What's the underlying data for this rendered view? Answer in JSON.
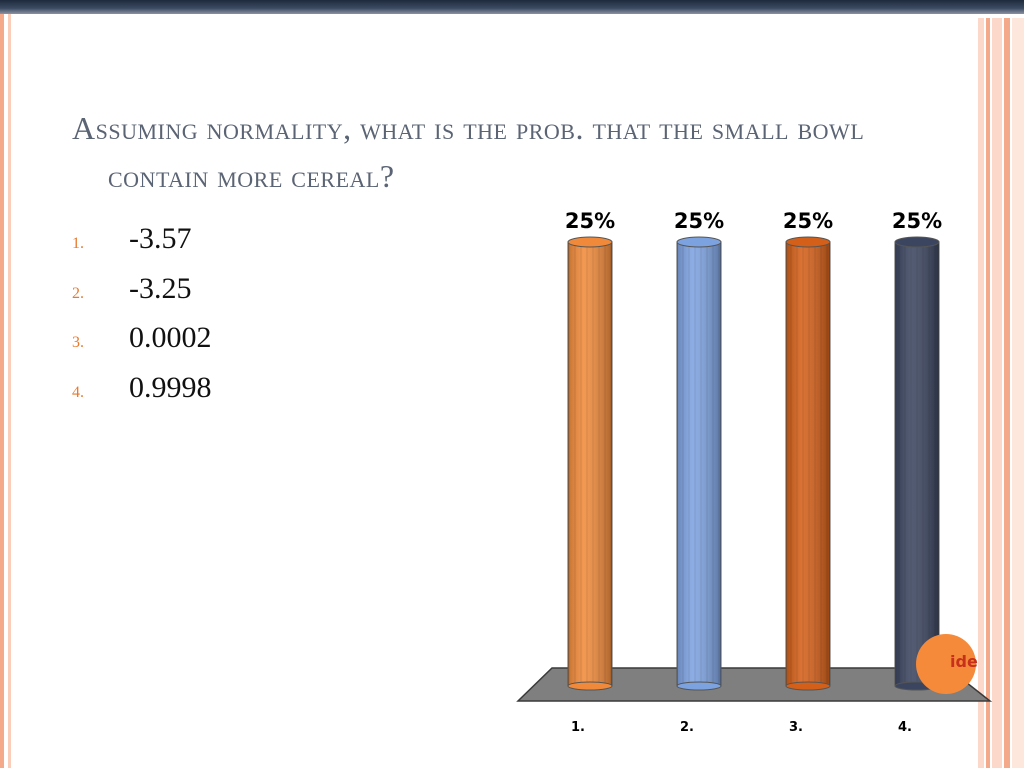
{
  "slide": {
    "title": "Assuming normality, what is the prob. that the small bowl contain more cereal?",
    "options": [
      {
        "number": "1.",
        "text": "-3.57"
      },
      {
        "number": "2.",
        "text": "-3.25"
      },
      {
        "number": "3.",
        "text": "0.0002"
      },
      {
        "number": "4.",
        "text": "0.9998"
      }
    ],
    "badge_text": "ide"
  },
  "colors": {
    "accent_orange": "#e87a2e",
    "title_gray": "#5b6474",
    "stripe_salmon": "#f6b9a0"
  },
  "chart_data": {
    "type": "bar",
    "categories": [
      "1.",
      "2.",
      "3.",
      "4."
    ],
    "values": [
      25,
      25,
      25,
      25
    ],
    "value_labels": [
      "25%",
      "25%",
      "25%",
      "25%"
    ],
    "colors": [
      "#f08a3a",
      "#7da2e0",
      "#d45f18",
      "#3b4560"
    ],
    "ylim": [
      0,
      25
    ],
    "grid": false,
    "title": "",
    "xlabel": "",
    "ylabel": ""
  }
}
